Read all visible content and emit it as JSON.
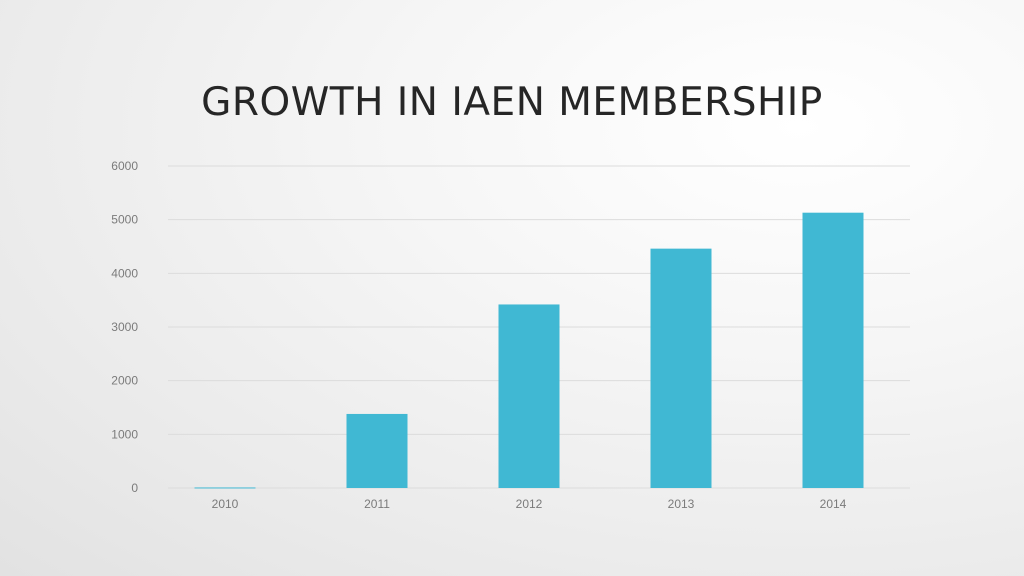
{
  "slide": {
    "title": "GROWTH IN IAEN MEMBERSHIP"
  },
  "colors": {
    "bar": "#40b8d3",
    "grid": "#dcdcdc",
    "tick_text": "#7b7b7b",
    "title_text": "#262626"
  },
  "chart_data": {
    "type": "bar",
    "title": "GROWTH IN IAEN MEMBERSHIP",
    "xlabel": "",
    "ylabel": "",
    "categories": [
      "2010",
      "2011",
      "2012",
      "2013",
      "2014"
    ],
    "values": [
      10,
      1380,
      3420,
      4460,
      5130
    ],
    "ylim": [
      0,
      6000
    ],
    "yticks": [
      "0",
      "1000",
      "2000",
      "3000",
      "4000",
      "5000",
      "6000"
    ],
    "grid": true,
    "legend": "none"
  }
}
